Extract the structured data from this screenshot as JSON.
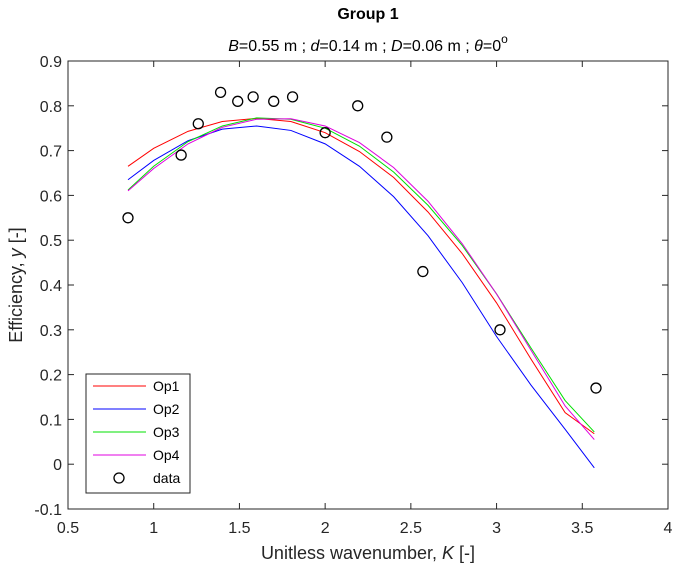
{
  "chart_data": {
    "type": "line",
    "title": "Group 1",
    "subtitle": {
      "B": "0.55",
      "d": "0.14",
      "D": "0.06",
      "theta": "0",
      "unit": "m"
    },
    "xlabel": {
      "text": "Unitless wavenumber, ",
      "var": "K",
      "unit": " [-]"
    },
    "ylabel": {
      "text": "Efficiency, ",
      "var": "y",
      "unit": " [-]"
    },
    "xlim": [
      0.5,
      4
    ],
    "ylim": [
      -0.1,
      0.9
    ],
    "xticks": [
      "0.5",
      "1",
      "1.5",
      "2",
      "2.5",
      "3",
      "3.5",
      "4"
    ],
    "yticks": [
      "-0.1",
      "0",
      "0.1",
      "0.2",
      "0.3",
      "0.4",
      "0.5",
      "0.6",
      "0.7",
      "0.8",
      "0.9"
    ],
    "series": [
      {
        "name": "Op1",
        "color": "#ff0000",
        "x": [
          0.85,
          1.0,
          1.2,
          1.4,
          1.6,
          1.8,
          2.0,
          2.2,
          2.4,
          2.6,
          2.8,
          3.0,
          3.2,
          3.4,
          3.57
        ],
        "y": [
          0.665,
          0.705,
          0.743,
          0.765,
          0.772,
          0.765,
          0.74,
          0.698,
          0.64,
          0.563,
          0.47,
          0.36,
          0.235,
          0.115,
          0.068
        ]
      },
      {
        "name": "Op2",
        "color": "#0000ff",
        "x": [
          0.85,
          1.0,
          1.2,
          1.4,
          1.6,
          1.8,
          2.0,
          2.2,
          2.4,
          2.6,
          2.8,
          3.0,
          3.2,
          3.4,
          3.57
        ],
        "y": [
          0.635,
          0.678,
          0.722,
          0.748,
          0.755,
          0.745,
          0.715,
          0.665,
          0.597,
          0.51,
          0.405,
          0.285,
          0.177,
          0.078,
          -0.008
        ]
      },
      {
        "name": "Op3",
        "color": "#00e000",
        "x": [
          0.85,
          1.0,
          1.2,
          1.4,
          1.6,
          1.8,
          2.0,
          2.2,
          2.4,
          2.6,
          2.8,
          3.0,
          3.2,
          3.4,
          3.57
        ],
        "y": [
          0.612,
          0.665,
          0.72,
          0.755,
          0.773,
          0.77,
          0.75,
          0.71,
          0.652,
          0.578,
          0.488,
          0.38,
          0.26,
          0.142,
          0.072
        ]
      },
      {
        "name": "Op4",
        "color": "#e000e0",
        "x": [
          0.85,
          1.0,
          1.2,
          1.4,
          1.6,
          1.8,
          2.0,
          2.2,
          2.4,
          2.6,
          2.8,
          3.0,
          3.2,
          3.4,
          3.57
        ],
        "y": [
          0.61,
          0.66,
          0.715,
          0.752,
          0.77,
          0.771,
          0.755,
          0.718,
          0.662,
          0.587,
          0.492,
          0.38,
          0.255,
          0.13,
          0.055
        ]
      }
    ],
    "scatter": {
      "name": "data",
      "x": [
        0.85,
        1.16,
        1.26,
        1.39,
        1.49,
        1.58,
        1.7,
        1.81,
        2.0,
        2.19,
        2.36,
        2.57,
        3.02,
        3.58
      ],
      "y": [
        0.55,
        0.69,
        0.76,
        0.83,
        0.81,
        0.82,
        0.81,
        0.82,
        0.74,
        0.8,
        0.73,
        0.43,
        0.3,
        0.17
      ]
    },
    "legend_position": "bottom-left"
  }
}
